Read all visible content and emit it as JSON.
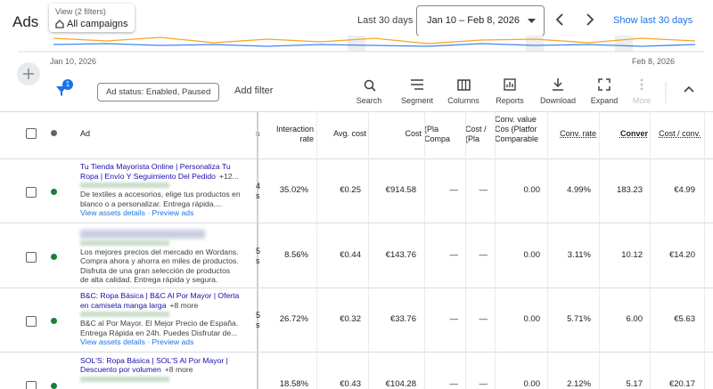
{
  "header": {
    "title": "Ads",
    "view_label": "View (2 filters)",
    "view_value": "All campaigns",
    "range_label": "Last 30 days",
    "range": "Jan 10 – Feb 8, 2026",
    "show_last": "Show last 30 days"
  },
  "chart": {
    "start": "Jan 10, 2026",
    "end": "Feb 8, 2026"
  },
  "filters": {
    "count": "1",
    "chip": "Ad status: Enabled, Paused",
    "add": "Add filter"
  },
  "toolbar": [
    "Search",
    "Segment",
    "Columns",
    "Reports",
    "Download",
    "Expand",
    "More"
  ],
  "table": {
    "ad_header": "Ad",
    "cut_header": "s",
    "columns": [
      "Interaction rate",
      "Avg. cost",
      "Cost",
      "(Pla Compa",
      "Cost / (Pla",
      "Conv. value Cos (Platfor Comparable",
      "Conv. rate",
      "Conver",
      "Cost / conv."
    ],
    "rows": [
      {
        "title": "Tu Tienda Mayorista Online | Personaliza Tu Ropa | Envío Y Seguimiento Del Pedido",
        "extra": "+12...",
        "description": "De textiles a accesorios, elige tus productos en blanco o a personalizar. Entrega rápida....",
        "links": "View assets details · Preview ads",
        "cut": [
          "4",
          "s"
        ],
        "cells": [
          "35.02%",
          "€0.25",
          "€914.58",
          "—",
          "—",
          "0.00",
          "4.99%",
          "183.23",
          "€4.99"
        ]
      },
      {
        "title": null,
        "extra": null,
        "description": "Los mejores precios del mercado en Wordans. Compra ahora y ahorra en miles de productos. Disfruta de una gran selección de productos de alta calidad. Entrega rápida y segura.",
        "links": null,
        "cut": [
          "5",
          "s"
        ],
        "cells": [
          "8.56%",
          "€0.44",
          "€143.76",
          "—",
          "—",
          "0.00",
          "3.11%",
          "10.12",
          "€14.20"
        ]
      },
      {
        "title": "B&C: Ropa Básica | B&C Al Por Mayor | Oferta en camiseta manga larga",
        "extra": "+8 more",
        "description": "B&C al Por Mayor. El Mejor Precio de España. Entrega Rápida en 24h. Puedes Disfrutar de...",
        "links": "View assets details · Preview ads",
        "cut": [
          "5",
          "s"
        ],
        "cells": [
          "26.72%",
          "€0.32",
          "€33.76",
          "—",
          "—",
          "0.00",
          "5.71%",
          "6.00",
          "€5.63"
        ]
      },
      {
        "title": "SOL'S: Ropa Básica | SOL'S Al Por Mayor | Descuento por volumen",
        "extra": "+8 more",
        "description": null,
        "links": null,
        "cut": [
          "",
          ""
        ],
        "cells": [
          "18.58%",
          "€0.43",
          "€104.28",
          "—",
          "—",
          "0.00",
          "2.12%",
          "5.17",
          "€20.17"
        ]
      }
    ]
  }
}
